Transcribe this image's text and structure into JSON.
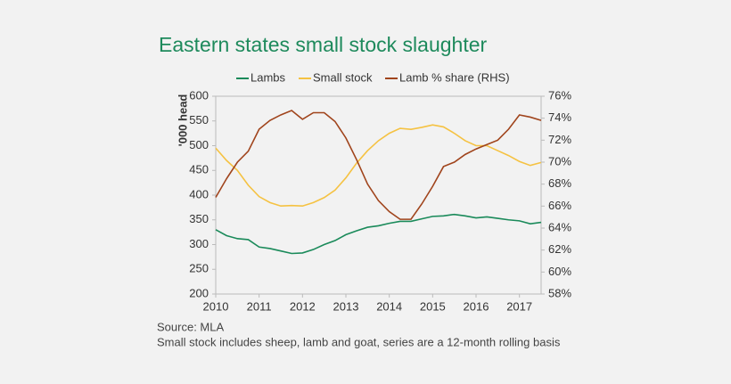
{
  "chart_data": {
    "type": "line",
    "title": "Eastern states small stock slaughter",
    "y_label": "'000 head",
    "x": [
      2010,
      2010.25,
      2010.5,
      2010.75,
      2011,
      2011.25,
      2011.5,
      2011.75,
      2012,
      2012.25,
      2012.5,
      2012.75,
      2013,
      2013.25,
      2013.5,
      2013.75,
      2014,
      2014.25,
      2014.5,
      2014.75,
      2015,
      2015.25,
      2015.5,
      2015.75,
      2016,
      2016.25,
      2016.5,
      2016.75,
      2017,
      2017.25,
      2017.5
    ],
    "series": [
      {
        "name": "Lambs",
        "color": "#1a8a5a",
        "values": [
          330,
          318,
          312,
          310,
          295,
          292,
          287,
          282,
          283,
          290,
          300,
          308,
          320,
          328,
          335,
          338,
          343,
          347,
          347,
          352,
          357,
          358,
          361,
          358,
          354,
          356,
          353,
          350,
          348,
          342,
          345
        ]
      },
      {
        "name": "Small stock",
        "color": "#f5c242",
        "values": [
          495,
          470,
          450,
          420,
          397,
          385,
          378,
          379,
          378,
          385,
          395,
          410,
          435,
          465,
          490,
          510,
          525,
          535,
          533,
          537,
          542,
          538,
          525,
          510,
          500,
          500,
          490,
          480,
          468,
          460,
          466
        ]
      },
      {
        "name": "Lamb % share (RHS)",
        "color": "#a0441c",
        "axis": "y2",
        "values": [
          66.8,
          68.5,
          70,
          71,
          73,
          73.8,
          74.3,
          74.7,
          73.9,
          74.5,
          74.5,
          73.7,
          72.2,
          70.2,
          68,
          66.5,
          65.5,
          64.8,
          64.8,
          66.2,
          67.8,
          69.6,
          70,
          70.7,
          71.2,
          71.6,
          72,
          73,
          74.3,
          74.1,
          73.8
        ]
      }
    ],
    "xlim": [
      2010,
      2017.5
    ],
    "xticks": [
      2010,
      2011,
      2012,
      2013,
      2014,
      2015,
      2016,
      2017
    ],
    "ylim": [
      200,
      600
    ],
    "yticks": [
      200,
      250,
      300,
      350,
      400,
      450,
      500,
      550,
      600
    ],
    "y2lim": [
      58,
      76
    ],
    "y2ticks": [
      {
        "value": 58,
        "label": "58%"
      },
      {
        "value": 60,
        "label": "60%"
      },
      {
        "value": 62,
        "label": "62%"
      },
      {
        "value": 64,
        "label": "64%"
      },
      {
        "value": 66,
        "label": "66%"
      },
      {
        "value": 68,
        "label": "68%"
      },
      {
        "value": 70,
        "label": "70%"
      },
      {
        "value": 72,
        "label": "72%"
      },
      {
        "value": 74,
        "label": "74%"
      },
      {
        "value": 76,
        "label": "76%"
      }
    ],
    "grid": false,
    "notes": [
      "Source: MLA",
      "Small stock includes sheep, lamb and goat, series are a 12-month rolling basis"
    ]
  }
}
